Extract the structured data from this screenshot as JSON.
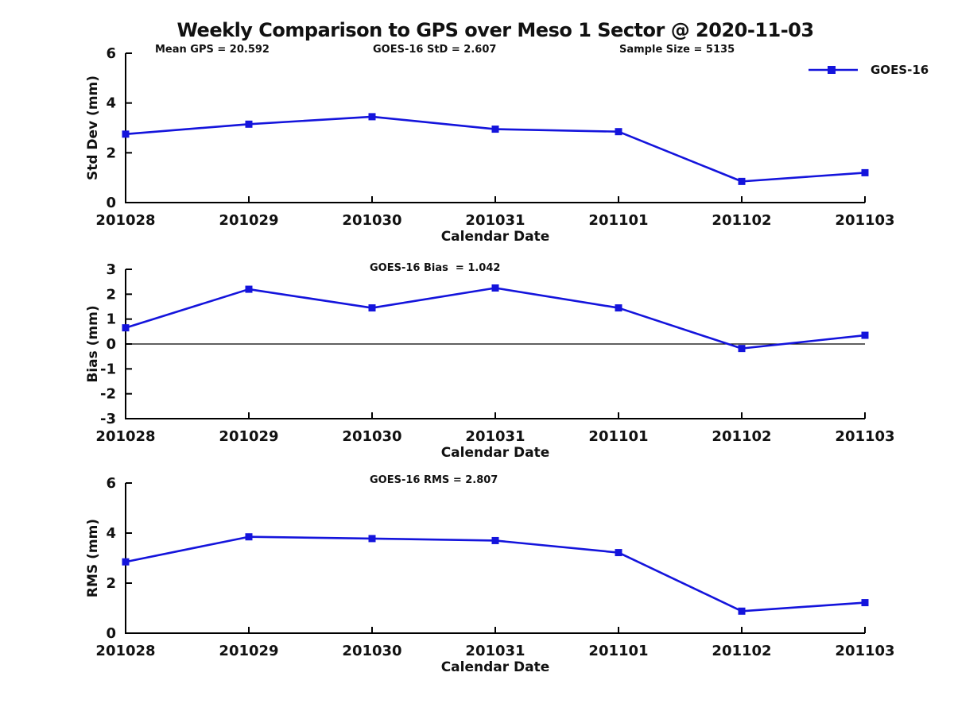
{
  "title": "Weekly Comparison to GPS over Meso 1 Sector @ 2020-11-03",
  "annotations": {
    "mean_gps": "Mean GPS = 20.592",
    "std": "GOES-16 StD = 2.607",
    "sample_size": "Sample Size = 5135"
  },
  "legend": {
    "label": "GOES-16"
  },
  "colors": {
    "line": "#1414dc",
    "axis": "#000000",
    "text": "#111111",
    "background": "#ffffff"
  },
  "chart_data": [
    {
      "type": "line",
      "title": "",
      "categories": [
        "201028",
        "201029",
        "201030",
        "201031",
        "201101",
        "201102",
        "201103"
      ],
      "series": [
        {
          "name": "GOES-16",
          "values": [
            2.75,
            3.15,
            3.45,
            2.95,
            2.85,
            0.85,
            1.2
          ]
        }
      ],
      "xlabel": "Calendar Date",
      "ylabel": "Std Dev (mm)",
      "ylim": [
        0,
        6
      ],
      "yticks": [
        0,
        2,
        4,
        6
      ],
      "marker": "square",
      "grid": false,
      "legend_position": "top-right",
      "zero_line": false
    },
    {
      "type": "line",
      "title": "GOES-16 Bias  = 1.042",
      "categories": [
        "201028",
        "201029",
        "201030",
        "201031",
        "201101",
        "201102",
        "201103"
      ],
      "series": [
        {
          "name": "GOES-16",
          "values": [
            0.65,
            2.2,
            1.45,
            2.25,
            1.45,
            -0.18,
            0.35
          ]
        }
      ],
      "xlabel": "Calendar Date",
      "ylabel": "Bias (mm)",
      "ylim": [
        -3,
        3
      ],
      "yticks": [
        -3,
        -2,
        -1,
        0,
        1,
        2,
        3
      ],
      "marker": "square",
      "grid": false,
      "legend_position": "none",
      "zero_line": true
    },
    {
      "type": "line",
      "title": "GOES-16 RMS = 2.807",
      "categories": [
        "201028",
        "201029",
        "201030",
        "201031",
        "201101",
        "201102",
        "201103"
      ],
      "series": [
        {
          "name": "GOES-16",
          "values": [
            2.85,
            3.85,
            3.78,
            3.7,
            3.22,
            0.88,
            1.22
          ]
        }
      ],
      "xlabel": "Calendar Date",
      "ylabel": "RMS (mm)",
      "ylim": [
        0,
        6
      ],
      "yticks": [
        0,
        2,
        4,
        6
      ],
      "marker": "square",
      "grid": false,
      "legend_position": "none",
      "zero_line": false
    }
  ]
}
